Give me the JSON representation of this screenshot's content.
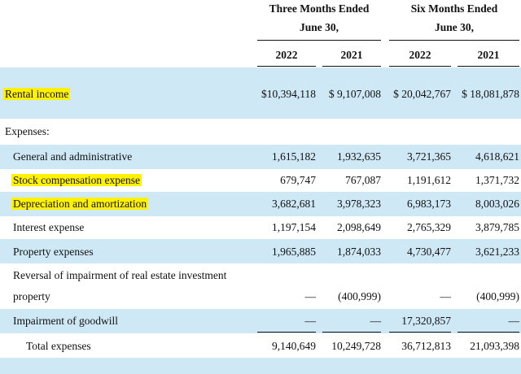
{
  "header": {
    "three_months_line1": "Three Months Ended",
    "three_months_line2": "June 30,",
    "six_months_line1": "Six Months Ended",
    "six_months_line2": "June 30,",
    "years": [
      "2022",
      "2021",
      "2022",
      "2021"
    ]
  },
  "rental_income": {
    "label": "Rental income",
    "values": [
      "$10,394,118",
      "$ 9,107,008",
      "$ 20,042,767",
      "$ 18,081,878"
    ]
  },
  "expenses_heading": "Expenses:",
  "expenses": [
    {
      "label": "General and administrative",
      "values": [
        "1,615,182",
        "1,932,635",
        "3,721,365",
        "4,618,621"
      ]
    },
    {
      "label": "Stock compensation expense",
      "values": [
        "679,747",
        "767,087",
        "1,191,612",
        "1,371,732"
      ]
    },
    {
      "label": "Depreciation and amortization",
      "values": [
        "3,682,681",
        "3,978,323",
        "6,983,173",
        "8,003,026"
      ]
    },
    {
      "label": "Interest expense",
      "values": [
        "1,197,154",
        "2,098,649",
        "2,765,329",
        "3,879,785"
      ]
    },
    {
      "label": "Property expenses",
      "values": [
        "1,965,885",
        "1,874,033",
        "4,730,477",
        "3,621,233"
      ]
    },
    {
      "label_line1": "Reversal of impairment of real estate investment",
      "label_line2": "property",
      "values": [
        "—",
        "(400,999)",
        "—",
        "(400,999)"
      ]
    },
    {
      "label": "Impairment of goodwill",
      "values": [
        "—",
        "—",
        "17,320,857",
        "—"
      ]
    }
  ],
  "total_expenses": {
    "label": "Total expenses",
    "values": [
      "9,140,649",
      "10,249,728",
      "36,712,813",
      "21,093,398"
    ]
  },
  "colors": {
    "band": "#cfe8f6",
    "highlight": "#fff200"
  }
}
